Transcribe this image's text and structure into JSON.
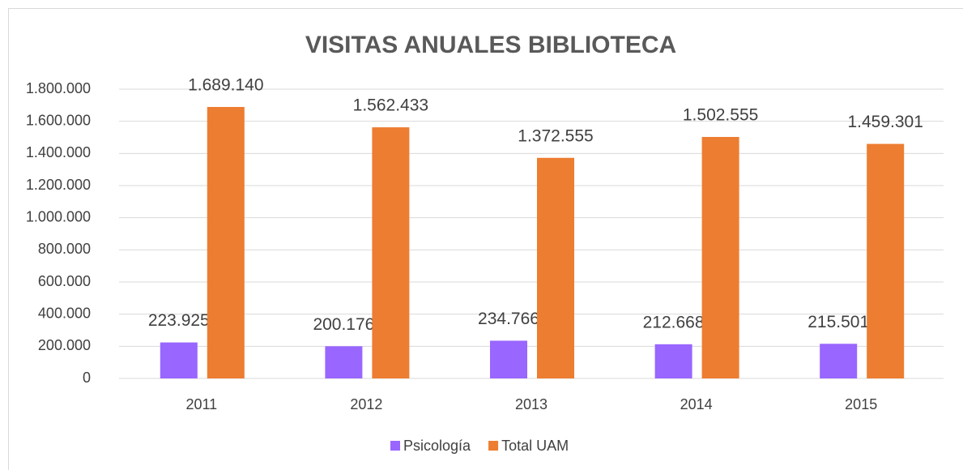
{
  "chart_data": {
    "type": "bar",
    "title": "VISITAS ANUALES BIBLIOTECA",
    "categories": [
      "2011",
      "2012",
      "2013",
      "2014",
      "2015"
    ],
    "series": [
      {
        "name": "Psicología",
        "color": "#9966ff",
        "values": [
          223925,
          200176,
          234766,
          212668,
          215501
        ],
        "value_labels": [
          "223.925",
          "200.176",
          "234.766",
          "212.668",
          "215.501"
        ]
      },
      {
        "name": "Total UAM",
        "color": "#ed7d31",
        "values": [
          1689140,
          1562433,
          1372555,
          1502555,
          1459301
        ],
        "value_labels": [
          "1.689.140",
          "1.562.433",
          "1.372.555",
          "1.502.555",
          "1.459.301"
        ]
      }
    ],
    "ylim": [
      0,
      1800000
    ],
    "yticks": [
      0,
      {
        "value": 200000,
        "label": "200.000"
      },
      {
        "value": 400000,
        "label": "400.000"
      },
      {
        "value": 600000,
        "label": "600.000"
      },
      {
        "value": 800000,
        "label": "800.000"
      },
      {
        "value": 1000000,
        "label": "1.000.000"
      },
      {
        "value": 1200000,
        "label": "1.200.000"
      },
      {
        "value": 1400000,
        "label": "1.400.000"
      },
      {
        "value": 1600000,
        "label": "1.600.000"
      },
      {
        "value": 1800000,
        "label": "1.800.000"
      }
    ],
    "grid": true,
    "legend": "bottom"
  }
}
